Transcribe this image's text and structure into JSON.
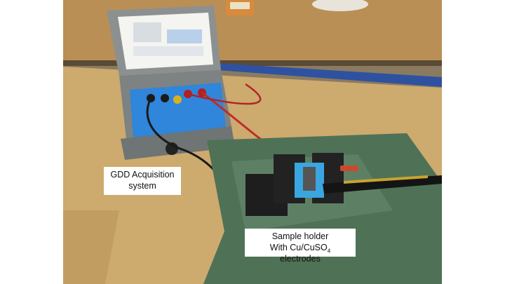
{
  "labels": {
    "acquisition_line1": "GDD Acquisition",
    "acquisition_line2": "system",
    "sample_line1": "Sample holder",
    "sample_line2_prefix": "With Cu/CuSO",
    "sample_line2_sub": "4",
    "sample_line2_suffix": " electrodes"
  },
  "colors": {
    "table_wood": "#c8a46a",
    "floor": "#7a6a52",
    "case_gray": "#8e9292",
    "panel_blue": "#2a7fd0",
    "plastic_sheet": "#4e6f55",
    "callout_bg": "#ffffff"
  }
}
